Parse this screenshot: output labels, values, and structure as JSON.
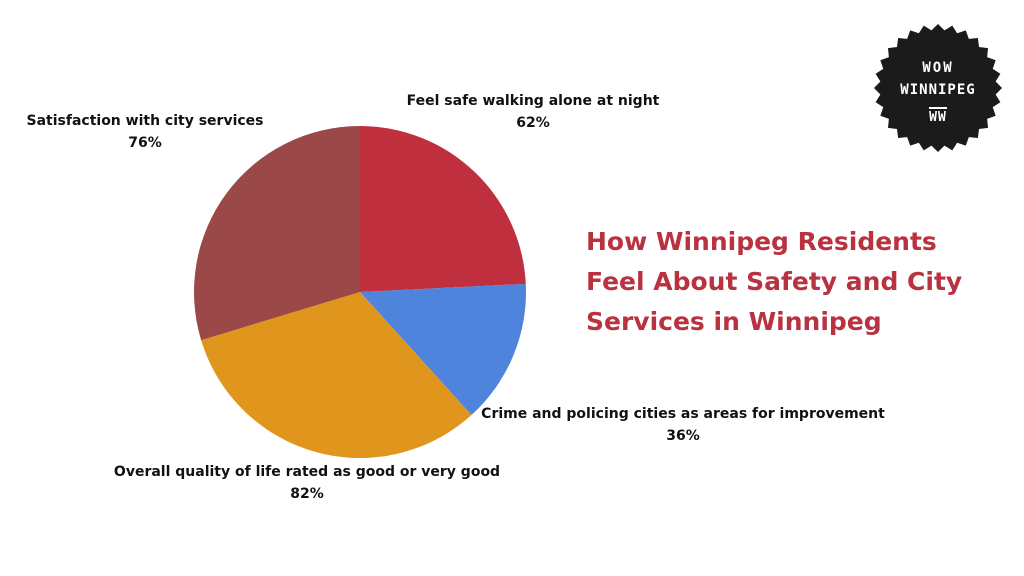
{
  "chart_data": {
    "type": "pie",
    "title": "How Winnipeg Residents Feel About Safety and City Services in Winnipeg",
    "title_lines": [
      "How Winnipeg Residents",
      "Feel About Safety and City",
      "Services in Winnipeg"
    ],
    "slices": [
      {
        "label": "Feel safe walking alone at night",
        "value_label": "62%",
        "value": 62,
        "color": "#bf2f3d"
      },
      {
        "label": "Crime and policing cities as areas for improvement",
        "value_label": "36%",
        "value": 36,
        "color": "#4f84dc"
      },
      {
        "label": "Overall quality of life rated as good or very good",
        "value_label": "82%",
        "value": 82,
        "color": "#e0961c"
      },
      {
        "label": "Satisfaction with city services",
        "value_label": "76%",
        "value": 76,
        "color": "#9b4848"
      }
    ]
  },
  "logo": {
    "line1": "WOW",
    "line2": "WINNIPEG",
    "line3": "WW"
  }
}
